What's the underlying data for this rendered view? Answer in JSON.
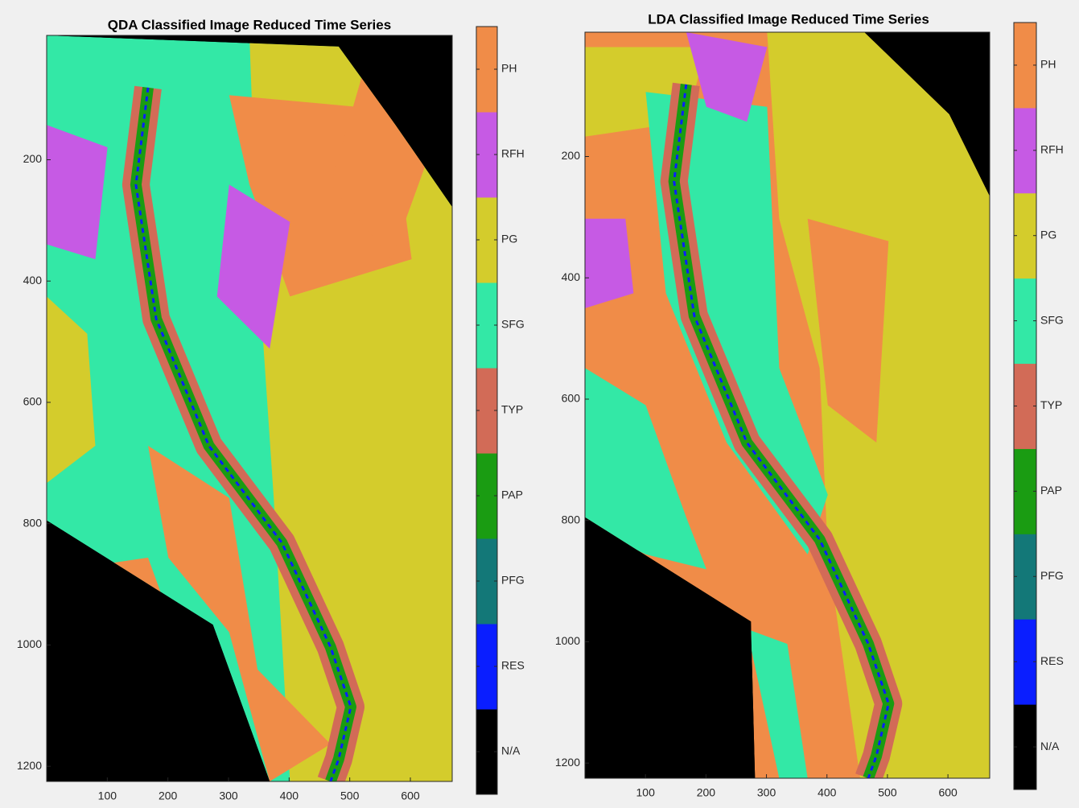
{
  "chart_data": [
    {
      "type": "image",
      "title": "QDA Classified Image Reduced Time Series",
      "xlim": [
        0,
        669
      ],
      "ylim": [
        -5,
        1225
      ],
      "y_reversed": true,
      "xticks": [
        100,
        200,
        300,
        400,
        500,
        600
      ],
      "yticks": [
        200,
        400,
        600,
        800,
        1000,
        1200
      ],
      "colorbar": {
        "labels": [
          "N/A",
          "RES",
          "PFG",
          "PAP",
          "TYP",
          "SFG",
          "PG",
          "RFH",
          "PH"
        ],
        "colors": [
          "#000000",
          "#0a1eff",
          "#137878",
          "#1a9c12",
          "#d26b57",
          "#33e8a6",
          "#d4cc2c",
          "#c65ae4",
          "#f08c48"
        ]
      }
    },
    {
      "type": "image",
      "title": "LDA Classified Image Reduced Time Series",
      "xlim": [
        0,
        669
      ],
      "ylim": [
        -5,
        1225
      ],
      "y_reversed": true,
      "xticks": [
        100,
        200,
        300,
        400,
        500,
        600
      ],
      "yticks": [
        200,
        400,
        600,
        800,
        1000,
        1200
      ],
      "colorbar": {
        "labels": [
          "N/A",
          "RES",
          "PFG",
          "PAP",
          "TYP",
          "SFG",
          "PG",
          "RFH",
          "PH"
        ],
        "colors": [
          "#000000",
          "#0a1eff",
          "#137878",
          "#1a9c12",
          "#d26b57",
          "#33e8a6",
          "#d4cc2c",
          "#c65ae4",
          "#f08c48"
        ]
      }
    }
  ]
}
